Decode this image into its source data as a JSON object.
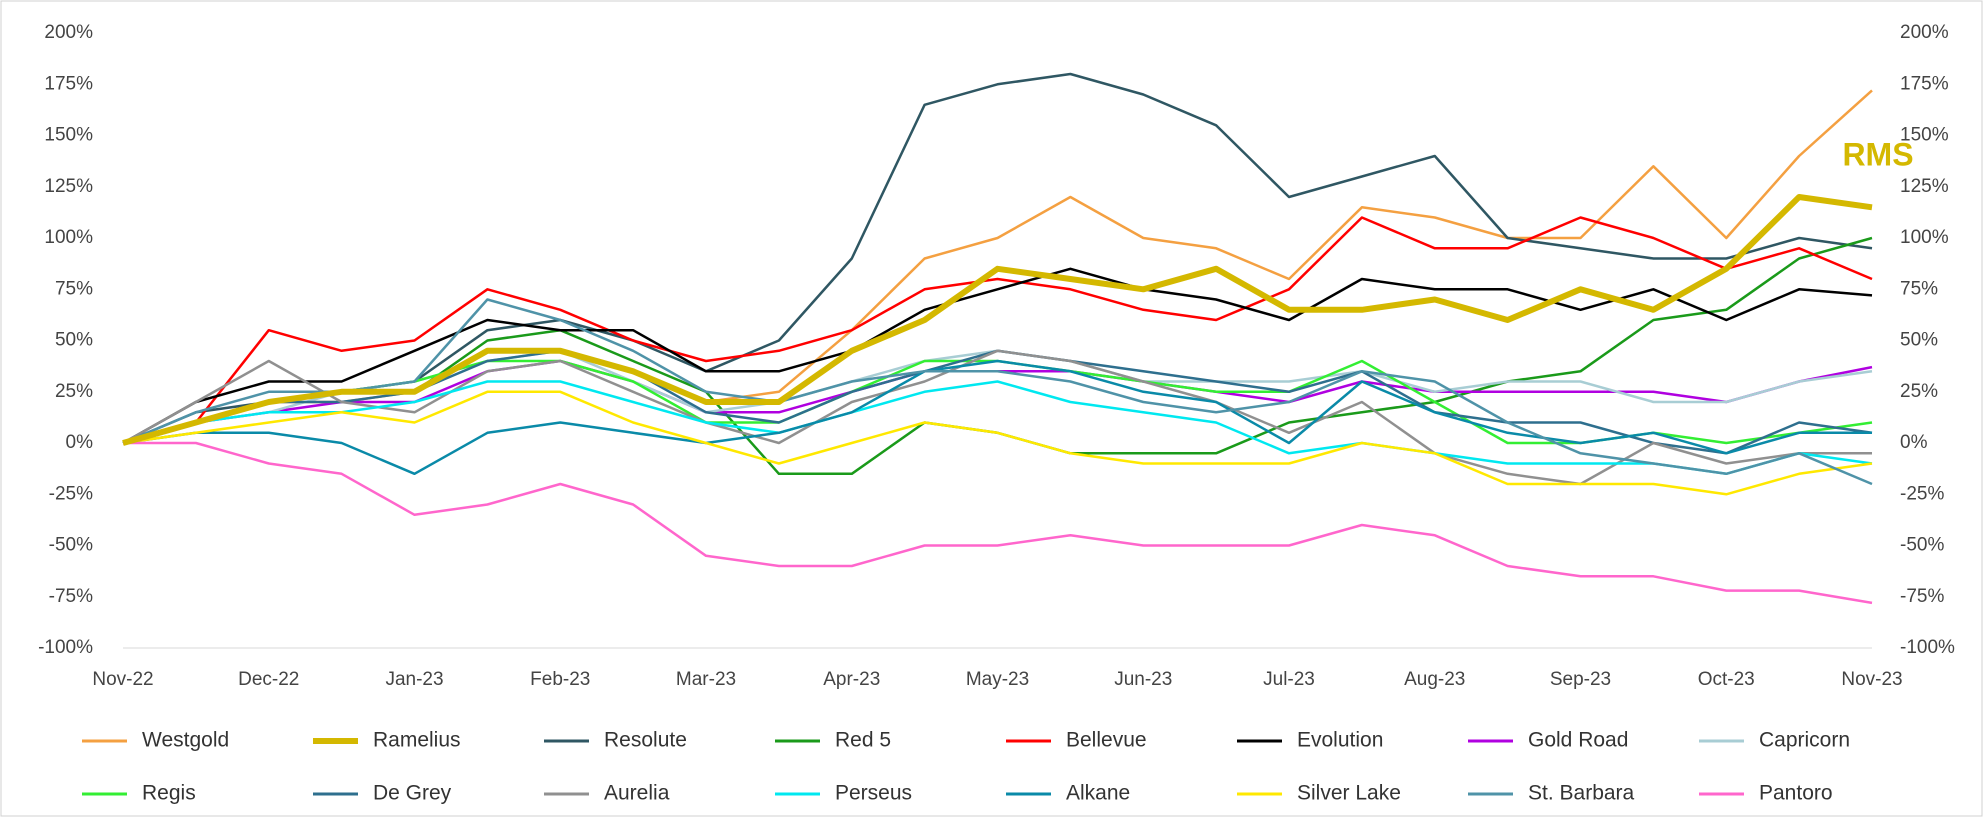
{
  "chart_data": {
    "type": "line",
    "categories": [
      "Nov-22",
      null,
      "Dec-22",
      null,
      "Jan-23",
      null,
      "Feb-23",
      null,
      "Mar-23",
      null,
      "Apr-23",
      null,
      "May-23",
      null,
      "Jun-23",
      null,
      "Jul-23",
      null,
      "Aug-23",
      null,
      "Sep-23",
      null,
      "Oct-23",
      null,
      "Nov-23"
    ],
    "ylim": [
      -100,
      200
    ],
    "yticks": [
      {
        "value": -100,
        "label": "-100%"
      },
      {
        "value": -75,
        "label": "-75%"
      },
      {
        "value": -50,
        "label": "-50%"
      },
      {
        "value": -25,
        "label": "-25%"
      },
      {
        "value": 0,
        "label": "0%"
      },
      {
        "value": 25,
        "label": "25%"
      },
      {
        "value": 50,
        "label": "50%"
      },
      {
        "value": 75,
        "label": "75%"
      },
      {
        "value": 100,
        "label": "100%"
      },
      {
        "value": 125,
        "label": "125%"
      },
      {
        "value": 150,
        "label": "150%"
      },
      {
        "value": 175,
        "label": "175%"
      },
      {
        "value": 200,
        "label": "200%"
      }
    ],
    "y2lim": [
      -100,
      200
    ],
    "y2ticks": [
      {
        "value": -100,
        "label": "-100%"
      },
      {
        "value": -75,
        "label": "-75%"
      },
      {
        "value": -50,
        "label": "-50%"
      },
      {
        "value": -25,
        "label": "-25%"
      },
      {
        "value": 0,
        "label": "0%"
      },
      {
        "value": 25,
        "label": "25%"
      },
      {
        "value": 50,
        "label": "50%"
      },
      {
        "value": 75,
        "label": "75%"
      },
      {
        "value": 100,
        "label": "100%"
      },
      {
        "value": 125,
        "label": "125%"
      },
      {
        "value": 150,
        "label": "150%"
      },
      {
        "value": 175,
        "label": "175%"
      },
      {
        "value": 200,
        "label": "200%"
      }
    ],
    "grid": false,
    "legend": "bottom",
    "annotation": {
      "text": "RMS",
      "color": "#d4b800"
    },
    "series": [
      {
        "name": "Westgold",
        "color": "#f4a041",
        "values": [
          0,
          10,
          20,
          20,
          25,
          45,
          45,
          35,
          20,
          25,
          55,
          90,
          100,
          120,
          100,
          95,
          80,
          115,
          110,
          100,
          100,
          135,
          100,
          140,
          172
        ]
      },
      {
        "name": "Ramelius",
        "color": "#d4b800",
        "highlight": true,
        "values": [
          0,
          10,
          20,
          25,
          25,
          45,
          45,
          35,
          20,
          20,
          45,
          60,
          85,
          80,
          75,
          85,
          65,
          65,
          70,
          60,
          75,
          65,
          85,
          120,
          115
        ]
      },
      {
        "name": "Resolute",
        "color": "#2f5763",
        "values": [
          0,
          15,
          20,
          25,
          30,
          55,
          60,
          50,
          35,
          50,
          90,
          165,
          175,
          180,
          170,
          155,
          120,
          130,
          140,
          100,
          95,
          90,
          90,
          100,
          95
        ]
      },
      {
        "name": "Red 5",
        "color": "#1a9a1a",
        "values": [
          0,
          10,
          20,
          25,
          25,
          50,
          55,
          40,
          25,
          -15,
          -15,
          10,
          5,
          -5,
          -5,
          -5,
          10,
          15,
          20,
          30,
          35,
          60,
          65,
          90,
          100
        ]
      },
      {
        "name": "Bellevue",
        "color": "#ff0000",
        "values": [
          0,
          10,
          55,
          45,
          50,
          75,
          65,
          50,
          40,
          45,
          55,
          75,
          80,
          75,
          65,
          60,
          75,
          110,
          95,
          95,
          110,
          100,
          85,
          95,
          80
        ]
      },
      {
        "name": "Evolution",
        "color": "#000000",
        "values": [
          0,
          20,
          30,
          30,
          45,
          60,
          55,
          55,
          35,
          35,
          45,
          65,
          75,
          85,
          75,
          70,
          60,
          80,
          75,
          75,
          65,
          75,
          60,
          75,
          72
        ]
      },
      {
        "name": "Gold Road",
        "color": "#b000e0",
        "values": [
          0,
          10,
          15,
          20,
          20,
          35,
          40,
          30,
          15,
          15,
          25,
          35,
          35,
          35,
          30,
          25,
          20,
          30,
          25,
          25,
          25,
          25,
          20,
          30,
          37
        ]
      },
      {
        "name": "Capricorn",
        "color": "#a8cdd4",
        "values": [
          0,
          10,
          15,
          25,
          30,
          40,
          45,
          30,
          15,
          20,
          30,
          40,
          45,
          40,
          30,
          30,
          30,
          35,
          25,
          30,
          30,
          20,
          20,
          30,
          35
        ]
      },
      {
        "name": "Regis",
        "color": "#33ee33",
        "values": [
          0,
          10,
          20,
          25,
          30,
          40,
          40,
          30,
          10,
          10,
          25,
          40,
          40,
          35,
          30,
          25,
          25,
          40,
          20,
          0,
          0,
          5,
          0,
          5,
          10
        ]
      },
      {
        "name": "De Grey",
        "color": "#2e6f8e",
        "values": [
          0,
          10,
          20,
          20,
          25,
          40,
          45,
          35,
          15,
          10,
          25,
          35,
          45,
          40,
          35,
          30,
          25,
          35,
          15,
          10,
          10,
          0,
          -5,
          10,
          5
        ]
      },
      {
        "name": "Aurelia",
        "color": "#909090",
        "values": [
          0,
          20,
          40,
          20,
          15,
          35,
          40,
          25,
          10,
          0,
          20,
          30,
          45,
          40,
          30,
          20,
          5,
          20,
          -5,
          -15,
          -20,
          0,
          -10,
          -5,
          -5
        ]
      },
      {
        "name": "Perseus",
        "color": "#00e8f0",
        "values": [
          0,
          10,
          15,
          15,
          20,
          30,
          30,
          20,
          10,
          5,
          15,
          25,
          30,
          20,
          15,
          10,
          -5,
          0,
          -5,
          -10,
          -10,
          -10,
          -15,
          -5,
          -10
        ]
      },
      {
        "name": "Alkane",
        "color": "#0a8aa8",
        "values": [
          0,
          5,
          5,
          0,
          -15,
          5,
          10,
          5,
          0,
          5,
          15,
          35,
          40,
          35,
          25,
          20,
          0,
          30,
          15,
          5,
          0,
          5,
          -5,
          5,
          5
        ]
      },
      {
        "name": "Silver Lake",
        "color": "#ffe800",
        "values": [
          0,
          5,
          10,
          15,
          10,
          25,
          25,
          10,
          0,
          -10,
          0,
          10,
          5,
          -5,
          -10,
          -10,
          -10,
          0,
          -5,
          -20,
          -20,
          -20,
          -25,
          -15,
          -10
        ]
      },
      {
        "name": "St. Barbara",
        "color": "#4f93a8",
        "values": [
          0,
          15,
          25,
          25,
          30,
          70,
          60,
          45,
          25,
          20,
          30,
          35,
          35,
          30,
          20,
          15,
          20,
          35,
          30,
          10,
          -5,
          -10,
          -15,
          -5,
          -20
        ]
      },
      {
        "name": "Pantoro",
        "color": "#ff66cc",
        "values": [
          0,
          0,
          -10,
          -15,
          -35,
          -30,
          -20,
          -30,
          -55,
          -60,
          -60,
          -50,
          -50,
          -45,
          -50,
          -50,
          -50,
          -40,
          -45,
          -60,
          -65,
          -65,
          -72,
          -72,
          -78
        ]
      }
    ]
  }
}
